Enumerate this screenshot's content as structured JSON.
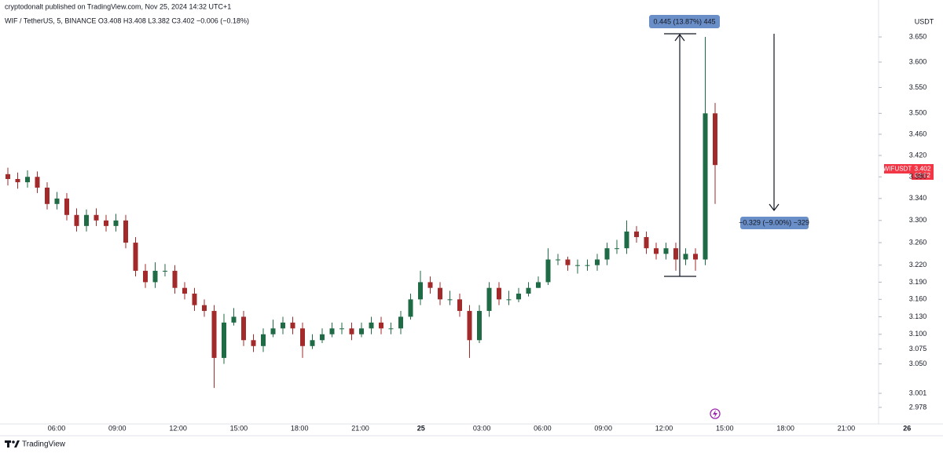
{
  "header": {
    "publisher": "cryptodonalt published on TradingView.com, Nov 25, 2024 14:32 UTC+1",
    "legend": "WIF / TetherUS, 5, BINANCE  O3.408 H3.408 L3.382 C3.402 −0.006 (−0.18%)"
  },
  "footer": {
    "brand": "TradingView"
  },
  "chart_data": {
    "type": "candlestick",
    "log_scale": true,
    "grid": false,
    "y_axis_unit": "USDT",
    "symbol_label": "WIFUSDT",
    "last_price_label": "3.402",
    "countdown_label": "02:52",
    "annotations": [
      "0.445 (13.87%) 445",
      "−0.329 (−9.00%) −329"
    ],
    "xtick_labels": [
      "06:00",
      "09:00",
      "12:00",
      "15:00",
      "18:00",
      "21:00",
      "25",
      "03:00",
      "06:00",
      "09:00",
      "12:00",
      "15:00",
      "18:00",
      "21:00",
      "26"
    ],
    "up_color": "#1f6b45",
    "down_color": "#a32a2a",
    "ylim": [
      2.951,
      3.696
    ],
    "yticks": [
      {
        "value": 3.65,
        "label": "3.650"
      },
      {
        "value": 3.6,
        "label": "3.600"
      },
      {
        "value": 3.55,
        "label": "3.550"
      },
      {
        "value": 3.5,
        "label": "3.500"
      },
      {
        "value": 3.46,
        "label": "3.460"
      },
      {
        "value": 3.42,
        "label": "3.420"
      },
      {
        "value": 3.38,
        "label": "3.380"
      },
      {
        "value": 3.34,
        "label": "3.340"
      },
      {
        "value": 3.3,
        "label": "3.300"
      },
      {
        "value": 3.26,
        "label": "3.260"
      },
      {
        "value": 3.22,
        "label": "3.220"
      },
      {
        "value": 3.19,
        "label": "3.190"
      },
      {
        "value": 3.16,
        "label": "3.160"
      },
      {
        "value": 3.13,
        "label": "3.130"
      },
      {
        "value": 3.1,
        "label": "3.100"
      },
      3.075,
      {
        "value": 3.05,
        "label": "3.050"
      },
      3.001,
      2.978
    ],
    "open": [
      3.385,
      3.376,
      3.37,
      3.38,
      3.36,
      3.33,
      3.34,
      3.31,
      3.29,
      3.31,
      3.3,
      3.29,
      3.3,
      3.26,
      3.21,
      3.19,
      3.21,
      3.21,
      3.18,
      3.17,
      3.15,
      3.14,
      3.06,
      3.12,
      3.13,
      3.09,
      3.08,
      3.1,
      3.11,
      3.12,
      3.11,
      3.08,
      3.09,
      3.1,
      3.11,
      3.11,
      3.1,
      3.11,
      3.12,
      3.11,
      3.11,
      3.13,
      3.16,
      3.19,
      3.18,
      3.16,
      3.16,
      3.14,
      3.09,
      3.14,
      3.18,
      3.16,
      3.16,
      3.17,
      3.18,
      3.19,
      3.23,
      3.23,
      3.22,
      3.22,
      3.22,
      3.23,
      3.25,
      3.25,
      3.28,
      3.27,
      3.25,
      3.24,
      3.25,
      3.23,
      3.24,
      3.23,
      3.5
    ],
    "high": [
      3.397,
      3.388,
      3.392,
      3.39,
      3.37,
      3.352,
      3.35,
      3.322,
      3.32,
      3.322,
      3.31,
      3.312,
      3.31,
      3.27,
      3.222,
      3.225,
      3.222,
      3.22,
      3.19,
      3.18,
      3.16,
      3.15,
      3.135,
      3.145,
      3.14,
      3.1,
      3.11,
      3.125,
      3.13,
      3.13,
      3.12,
      3.1,
      3.11,
      3.12,
      3.12,
      3.12,
      3.12,
      3.13,
      3.13,
      3.12,
      3.14,
      3.17,
      3.21,
      3.2,
      3.19,
      3.175,
      3.17,
      3.15,
      3.15,
      3.19,
      3.19,
      3.175,
      3.18,
      3.19,
      3.2,
      3.25,
      3.24,
      3.235,
      3.23,
      3.23,
      3.24,
      3.26,
      3.265,
      3.3,
      3.29,
      3.28,
      3.26,
      3.26,
      3.26,
      3.25,
      3.25,
      3.65,
      3.52
    ],
    "low": [
      3.364,
      3.358,
      3.36,
      3.35,
      3.32,
      3.32,
      3.3,
      3.28,
      3.28,
      3.29,
      3.28,
      3.28,
      3.25,
      3.2,
      3.18,
      3.18,
      3.2,
      3.17,
      3.16,
      3.14,
      3.13,
      3.01,
      3.05,
      3.115,
      3.08,
      3.07,
      3.07,
      3.095,
      3.1,
      3.1,
      3.06,
      3.075,
      3.085,
      3.095,
      3.1,
      3.09,
      3.095,
      3.1,
      3.1,
      3.1,
      3.1,
      3.125,
      3.15,
      3.17,
      3.15,
      3.15,
      3.13,
      3.06,
      3.085,
      3.13,
      3.15,
      3.15,
      3.155,
      3.165,
      3.18,
      3.185,
      3.22,
      3.21,
      3.205,
      3.21,
      3.21,
      3.22,
      3.24,
      3.24,
      3.26,
      3.24,
      3.23,
      3.23,
      3.21,
      3.22,
      3.21,
      3.22,
      3.33
    ],
    "close": [
      3.376,
      3.37,
      3.38,
      3.36,
      3.33,
      3.34,
      3.31,
      3.29,
      3.31,
      3.3,
      3.29,
      3.3,
      3.26,
      3.21,
      3.19,
      3.21,
      3.21,
      3.18,
      3.17,
      3.15,
      3.14,
      3.06,
      3.12,
      3.13,
      3.09,
      3.08,
      3.1,
      3.11,
      3.12,
      3.11,
      3.08,
      3.09,
      3.1,
      3.11,
      3.11,
      3.1,
      3.11,
      3.12,
      3.11,
      3.11,
      3.13,
      3.16,
      3.19,
      3.18,
      3.16,
      3.16,
      3.14,
      3.09,
      3.14,
      3.18,
      3.16,
      3.16,
      3.17,
      3.18,
      3.19,
      3.23,
      3.23,
      3.22,
      3.22,
      3.22,
      3.23,
      3.25,
      3.25,
      3.28,
      3.27,
      3.25,
      3.24,
      3.25,
      3.23,
      3.24,
      3.23,
      3.5,
      3.402
    ]
  }
}
